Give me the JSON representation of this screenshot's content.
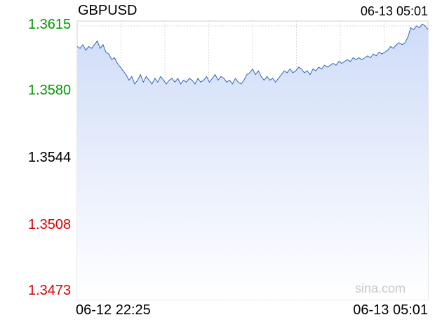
{
  "chart_data": {
    "type": "area",
    "title": "GBPUSD",
    "timestamp": "06-13 05:01",
    "watermark": "sina.com",
    "x_labels": [
      "06-12 22:25",
      "06-13 05:01"
    ],
    "y_ticks": [
      {
        "label": "1.3615",
        "value": 1.3615,
        "color": "#009900"
      },
      {
        "label": "1.3580",
        "value": 1.358,
        "color": "#009900"
      },
      {
        "label": "1.3544",
        "value": 1.3544,
        "color": "#000000"
      },
      {
        "label": "1.3508",
        "value": 1.3508,
        "color": "#dd0000"
      },
      {
        "label": "1.3473",
        "value": 1.3473,
        "color": "#dd0000"
      }
    ],
    "ylim": [
      1.3473,
      1.3615
    ],
    "reference_value": 1.3544,
    "grid": true,
    "line_color": "#3366bb",
    "fill_color": "#cfdcf8",
    "series": [
      {
        "values": [
          1.3604,
          1.3603,
          1.3605,
          1.3602,
          1.3604,
          1.3603,
          1.3605,
          1.3607,
          1.3603,
          1.3605,
          1.3601,
          1.36,
          1.3597,
          1.3598,
          1.3595,
          1.3593,
          1.3591,
          1.3589,
          1.3586,
          1.3588,
          1.3584,
          1.3586,
          1.3589,
          1.3585,
          1.3588,
          1.3586,
          1.3584,
          1.3587,
          1.3585,
          1.3588,
          1.3586,
          1.3584,
          1.3586,
          1.3587,
          1.3585,
          1.3587,
          1.3584,
          1.3586,
          1.3585,
          1.3587,
          1.3586,
          1.3584,
          1.3587,
          1.3585,
          1.3586,
          1.3588,
          1.3585,
          1.3587,
          1.3589,
          1.3586,
          1.3588,
          1.3587,
          1.3585,
          1.3586,
          1.3584,
          1.3587,
          1.3585,
          1.3584,
          1.3586,
          1.3589,
          1.359,
          1.3592,
          1.3589,
          1.3591,
          1.3588,
          1.3586,
          1.3588,
          1.3586,
          1.3587,
          1.3585,
          1.3587,
          1.3589,
          1.3591,
          1.359,
          1.3592,
          1.359,
          1.3591,
          1.3593,
          1.3592,
          1.359,
          1.3591,
          1.3589,
          1.3592,
          1.3591,
          1.3593,
          1.3592,
          1.3594,
          1.3593,
          1.3594,
          1.3595,
          1.3594,
          1.3596,
          1.3595,
          1.3596,
          1.3597,
          1.3596,
          1.3598,
          1.3597,
          1.3598,
          1.3597,
          1.3598,
          1.3599,
          1.3598,
          1.36,
          1.3599,
          1.3601,
          1.36,
          1.3601,
          1.3602,
          1.3604,
          1.3603,
          1.3605,
          1.3606,
          1.3605,
          1.3606,
          1.3609,
          1.3614,
          1.3613,
          1.3615,
          1.3614,
          1.3616,
          1.3615,
          1.3613
        ]
      }
    ]
  }
}
